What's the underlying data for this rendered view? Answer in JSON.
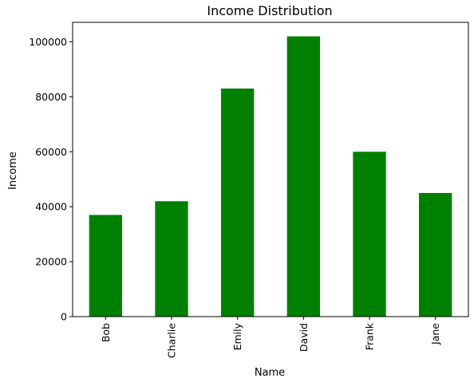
{
  "colors": {
    "bar": "#008000",
    "axis": "#000000",
    "background": "#ffffff"
  },
  "chart_data": {
    "type": "bar",
    "title": "Income Distribution",
    "xlabel": "Name",
    "ylabel": "Income",
    "categories": [
      "Bob",
      "Charlie",
      "Emily",
      "David",
      "Frank",
      "Jane"
    ],
    "values": [
      37000,
      42000,
      83000,
      102000,
      60000,
      45000
    ],
    "ylim": [
      0,
      107100
    ],
    "yticks": [
      0,
      20000,
      40000,
      60000,
      80000,
      100000
    ],
    "ytick_labels": [
      "0",
      "20000",
      "40000",
      "60000",
      "80000",
      "100000"
    ],
    "grid": false,
    "legend": "none",
    "x_tick_rotation": "vertical"
  }
}
